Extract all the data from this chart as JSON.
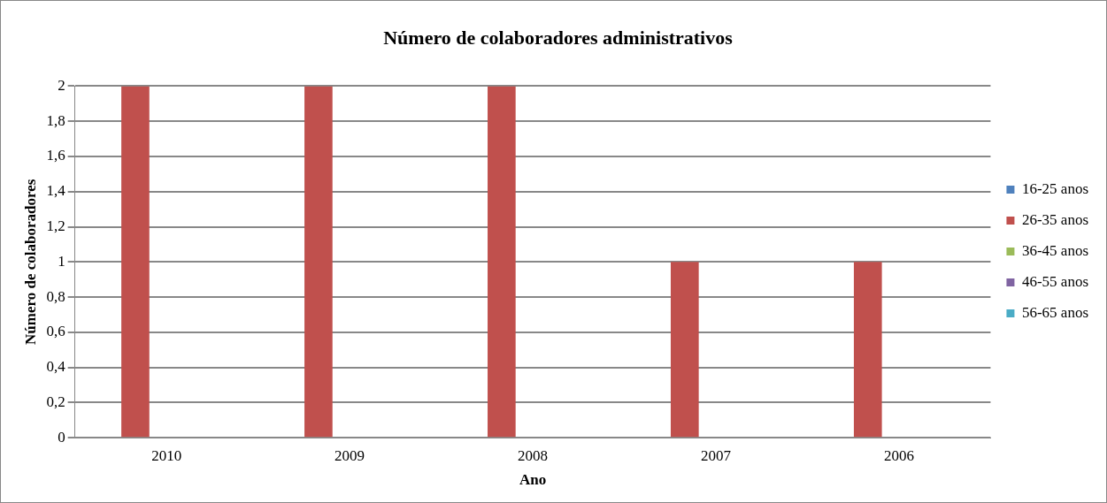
{
  "chart_data": {
    "type": "bar",
    "title": "Número de colaboradores administrativos",
    "xlabel": "Ano",
    "ylabel": "Número de colaboradores",
    "categories": [
      "2010",
      "2009",
      "2008",
      "2007",
      "2006"
    ],
    "series": [
      {
        "name": "16-25 anos",
        "color": "#4f81bd",
        "values": [
          0,
          0,
          0,
          0,
          0
        ]
      },
      {
        "name": "26-35 anos",
        "color": "#c0504d",
        "values": [
          2,
          2,
          2,
          1,
          1
        ]
      },
      {
        "name": "36-45 anos",
        "color": "#9bbb59",
        "values": [
          0,
          0,
          0,
          0,
          0
        ]
      },
      {
        "name": "46-55 anos",
        "color": "#8064a2",
        "values": [
          0,
          0,
          0,
          0,
          0
        ]
      },
      {
        "name": "56-65 anos",
        "color": "#4bacc6",
        "values": [
          0,
          0,
          0,
          0,
          0
        ]
      }
    ],
    "ylim": [
      0,
      2
    ],
    "yticks": [
      0,
      {
        "value": 0.2,
        "label": "0,2"
      },
      {
        "value": 0.4,
        "label": "0,4"
      },
      {
        "value": 0.6,
        "label": "0,6"
      },
      {
        "value": 0.8,
        "label": "0,8"
      },
      1,
      {
        "value": 1.2,
        "label": "1,2"
      },
      {
        "value": 1.4,
        "label": "1,4"
      },
      {
        "value": 1.6,
        "label": "1,6"
      },
      {
        "value": 1.8,
        "label": "1,8"
      },
      2
    ],
    "grid": "y",
    "legend": "right"
  }
}
